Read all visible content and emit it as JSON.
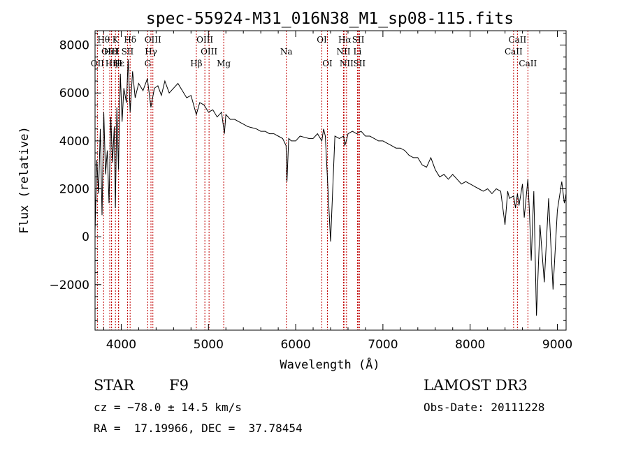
{
  "chart_data": {
    "type": "line",
    "title": "spec-55924-M31_016N38_M1_sp08-115.fits",
    "xlabel": "Wavelength (Å)",
    "ylabel": "Flux (relative)",
    "xlim": [
      3700,
      9100
    ],
    "ylim": [
      -3900,
      8600
    ],
    "xticks": [
      4000,
      5000,
      6000,
      7000,
      8000,
      9000
    ],
    "yticks": [
      -2000,
      0,
      2000,
      4000,
      6000,
      8000
    ],
    "series": [
      {
        "name": "flux",
        "x": [
          3700,
          3720,
          3740,
          3760,
          3780,
          3800,
          3820,
          3840,
          3860,
          3880,
          3900,
          3920,
          3933,
          3950,
          3968,
          3990,
          4010,
          4030,
          4060,
          4080,
          4102,
          4130,
          4160,
          4200,
          4250,
          4300,
          4340,
          4380,
          4420,
          4460,
          4500,
          4550,
          4600,
          4650,
          4700,
          4750,
          4800,
          4861,
          4900,
          4950,
          5000,
          5050,
          5100,
          5150,
          5183,
          5200,
          5250,
          5300,
          5350,
          5400,
          5450,
          5500,
          5550,
          5600,
          5650,
          5700,
          5750,
          5800,
          5850,
          5890,
          5900,
          5920,
          5950,
          6000,
          6050,
          6100,
          6150,
          6200,
          6250,
          6300,
          6320,
          6340,
          6400,
          6450,
          6500,
          6550,
          6563,
          6580,
          6600,
          6650,
          6700,
          6750,
          6800,
          6850,
          6900,
          6950,
          7000,
          7050,
          7100,
          7150,
          7200,
          7250,
          7300,
          7350,
          7400,
          7450,
          7500,
          7550,
          7600,
          7650,
          7700,
          7750,
          7800,
          7850,
          7900,
          7950,
          8000,
          8050,
          8100,
          8150,
          8200,
          8250,
          8300,
          8350,
          8400,
          8430,
          8450,
          8498,
          8520,
          8542,
          8560,
          8600,
          8620,
          8662,
          8680,
          8700,
          8730,
          8760,
          8800,
          8850,
          8900,
          8950,
          9000,
          9050,
          9080,
          9100
        ],
        "values": [
          200,
          3200,
          1800,
          4500,
          900,
          5200,
          2600,
          3600,
          1400,
          5000,
          3100,
          4600,
          1200,
          5400,
          2800,
          6800,
          4800,
          6200,
          5600,
          7400,
          5200,
          6900,
          5800,
          6400,
          6100,
          6600,
          5400,
          6200,
          6300,
          5900,
          6500,
          6000,
          6200,
          6400,
          6100,
          5800,
          5900,
          5100,
          5600,
          5500,
          5200,
          5300,
          5000,
          5200,
          4300,
          5100,
          4900,
          4900,
          4800,
          4700,
          4600,
          4550,
          4500,
          4400,
          4400,
          4300,
          4300,
          4200,
          4100,
          3800,
          2300,
          4100,
          4000,
          4000,
          4200,
          4150,
          4100,
          4100,
          4300,
          4000,
          4500,
          4200,
          -200,
          4200,
          4100,
          4200,
          3800,
          4000,
          4300,
          4400,
          4300,
          4400,
          4200,
          4200,
          4100,
          4000,
          4000,
          3900,
          3800,
          3700,
          3700,
          3600,
          3400,
          3300,
          3300,
          3000,
          2900,
          3300,
          2800,
          2500,
          2600,
          2400,
          2600,
          2400,
          2200,
          2300,
          2200,
          2100,
          2000,
          1900,
          2000,
          1800,
          2000,
          1900,
          500,
          1900,
          1600,
          1700,
          1200,
          1800,
          1300,
          2200,
          800,
          2400,
          1000,
          -1000,
          1900,
          -3300,
          500,
          -1900,
          1600,
          -2200,
          1100,
          2300,
          1400,
          1800
        ]
      }
    ],
    "lines": [
      {
        "name": "OII",
        "x": 3727,
        "row": 3
      },
      {
        "name": "Hθ",
        "x": 3798,
        "row": 1
      },
      {
        "name": "OIII",
        "x": 3869,
        "row": 2
      },
      {
        "name": "Hη",
        "x": 3889,
        "row": 3
      },
      {
        "name": "K",
        "x": 3934,
        "row": 1
      },
      {
        "name": "HeI",
        "x": 3889,
        "row": 2
      },
      {
        "name": "Hε",
        "x": 3970,
        "row": 3
      },
      {
        "name": "H",
        "x": 3969,
        "row": 3
      },
      {
        "name": "SII",
        "x": 4072,
        "row": 2
      },
      {
        "name": "Hδ",
        "x": 4102,
        "row": 1
      },
      {
        "name": "OIII",
        "x": 4363,
        "row": 1
      },
      {
        "name": "Hγ",
        "x": 4341,
        "row": 2
      },
      {
        "name": "G",
        "x": 4304,
        "row": 3
      },
      {
        "name": "Hβ",
        "x": 4861,
        "row": 3
      },
      {
        "name": "OIII",
        "x": 4959,
        "row": 1
      },
      {
        "name": "OIII",
        "x": 5007,
        "row": 2
      },
      {
        "name": "Mg",
        "x": 5175,
        "row": 3
      },
      {
        "name": "Na",
        "x": 5893,
        "row": 2
      },
      {
        "name": "OI",
        "x": 6300,
        "row": 1
      },
      {
        "name": "OI",
        "x": 6364,
        "row": 3
      },
      {
        "name": "Hα",
        "x": 6563,
        "row": 1
      },
      {
        "name": "NII",
        "x": 6548,
        "row": 2
      },
      {
        "name": "NII",
        "x": 6583,
        "row": 3
      },
      {
        "name": "SII",
        "x": 6717,
        "row": 1
      },
      {
        "name": "Li",
        "x": 6708,
        "row": 2
      },
      {
        "name": "SII",
        "x": 6731,
        "row": 3
      },
      {
        "name": "CaII",
        "x": 8542,
        "row": 1
      },
      {
        "name": "CaII",
        "x": 8498,
        "row": 2
      },
      {
        "name": "CaII",
        "x": 8662,
        "row": 3
      }
    ]
  },
  "info": {
    "object_class": "STAR",
    "subclass": "F9",
    "survey": "LAMOST DR3",
    "redshift": "cz = −78.0 ± 14.5 km/s",
    "obs_date": "Obs-Date: 20111228",
    "coords": "RA =  17.19966, DEC =  37.78454"
  }
}
